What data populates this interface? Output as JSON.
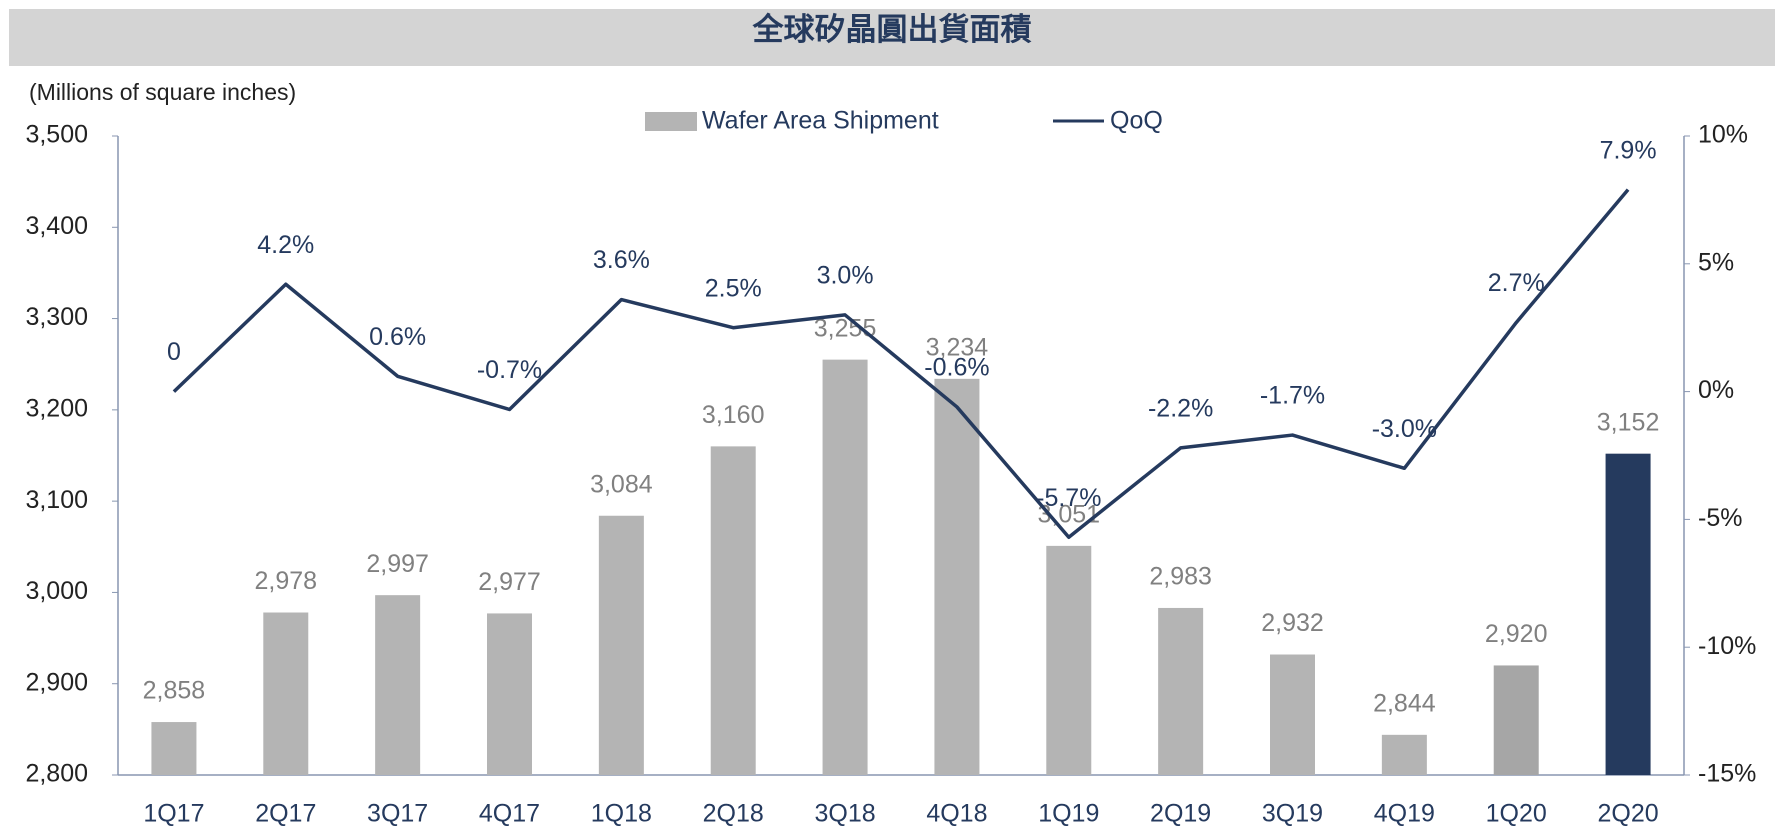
{
  "chart_data": {
    "type": "bar_line",
    "title": "全球矽晶圓出貨面積",
    "y_axis_label": "(Millions of square inches)",
    "categories": [
      "1Q17",
      "2Q17",
      "3Q17",
      "4Q17",
      "1Q18",
      "2Q18",
      "3Q18",
      "4Q18",
      "1Q19",
      "2Q19",
      "3Q19",
      "4Q19",
      "1Q20",
      "2Q20"
    ],
    "series": [
      {
        "name": "Wafer Area Shipment",
        "color": "#b4b4b4",
        "colors": [
          "#b4b4b4",
          "#b4b4b4",
          "#b4b4b4",
          "#b4b4b4",
          "#b4b4b4",
          "#b4b4b4",
          "#b4b4b4",
          "#b4b4b4",
          "#b4b4b4",
          "#b4b4b4",
          "#b4b4b4",
          "#b4b4b4",
          "#a6a6a6",
          "#253a5e"
        ],
        "values": [
          2858,
          2978,
          2997,
          2977,
          3084,
          3160,
          3255,
          3234,
          3051,
          2983,
          2932,
          2844,
          2920,
          3152
        ],
        "value_labels": [
          "2,858",
          "2,978",
          "2,997",
          "2,977",
          "3,084",
          "3,160",
          "3,255",
          "3,234",
          "3,051",
          "2,983",
          "2,932",
          "2,844",
          "2,920",
          "3,152"
        ]
      },
      {
        "name": "QoQ",
        "color": "#253a5e",
        "axis": "y2",
        "values": [
          0,
          4.2,
          0.6,
          -0.7,
          3.6,
          2.5,
          3.0,
          -0.6,
          -5.7,
          -2.2,
          -1.7,
          -3.0,
          2.7,
          7.9
        ],
        "value_labels": [
          "0",
          "4.2%",
          "0.6%",
          "-0.7%",
          "3.6%",
          "2.5%",
          "3.0%",
          "-0.6%",
          "-5.7%",
          "-2.2%",
          "-1.7%",
          "-3.0%",
          "2.7%",
          "7.9%"
        ]
      }
    ],
    "ylim": [
      2800,
      3500
    ],
    "yticks": [
      {
        "value": 2800,
        "label": "2,800"
      },
      {
        "value": 2900,
        "label": "2,900"
      },
      {
        "value": 3000,
        "label": "3,000"
      },
      {
        "value": 3100,
        "label": "3,100"
      },
      {
        "value": 3200,
        "label": "3,200"
      },
      {
        "value": 3300,
        "label": "3,300"
      },
      {
        "value": 3400,
        "label": "3,400"
      },
      {
        "value": 3500,
        "label": "3,500"
      }
    ],
    "y2lim": [
      -15,
      10
    ],
    "y2ticks": [
      {
        "value": -15,
        "label": "-15%"
      },
      {
        "value": -10,
        "label": "-10%"
      },
      {
        "value": -5,
        "label": "-5%"
      },
      {
        "value": 0,
        "label": "0%"
      },
      {
        "value": 5,
        "label": "5%"
      },
      {
        "value": 10,
        "label": "10%"
      }
    ]
  }
}
